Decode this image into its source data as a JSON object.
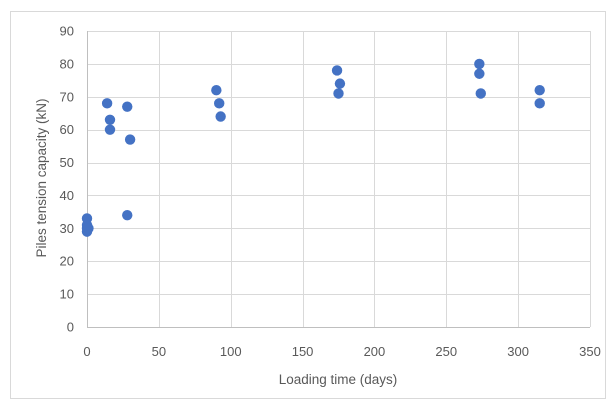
{
  "chart_data": {
    "type": "scatter",
    "title": "",
    "xlabel": "Loading time (days)",
    "ylabel": "Piles tension capacity (kN)",
    "xlim": [
      0,
      350
    ],
    "ylim": [
      0,
      90
    ],
    "x_ticks": [
      0,
      50,
      100,
      150,
      200,
      250,
      300,
      350
    ],
    "y_ticks": [
      0,
      10,
      20,
      30,
      40,
      50,
      60,
      70,
      80,
      90
    ],
    "x_tick_labels": [
      "0",
      "50",
      "100",
      "150",
      "200",
      "250",
      "300",
      "350"
    ],
    "y_tick_labels": [
      "0",
      "10",
      "20",
      "30",
      "40",
      "50",
      "60",
      "70",
      "80",
      "90"
    ],
    "grid": true,
    "marker_color": "#4472c4",
    "points": [
      {
        "x": 0,
        "y": 33
      },
      {
        "x": 0,
        "y": 31
      },
      {
        "x": 0,
        "y": 30
      },
      {
        "x": 0,
        "y": 29
      },
      {
        "x": 1,
        "y": 30
      },
      {
        "x": 14,
        "y": 68
      },
      {
        "x": 16,
        "y": 63
      },
      {
        "x": 16,
        "y": 60
      },
      {
        "x": 28,
        "y": 67
      },
      {
        "x": 30,
        "y": 57
      },
      {
        "x": 28,
        "y": 34
      },
      {
        "x": 90,
        "y": 72
      },
      {
        "x": 92,
        "y": 68
      },
      {
        "x": 93,
        "y": 64
      },
      {
        "x": 174,
        "y": 78
      },
      {
        "x": 176,
        "y": 74
      },
      {
        "x": 175,
        "y": 71
      },
      {
        "x": 273,
        "y": 80
      },
      {
        "x": 273,
        "y": 77
      },
      {
        "x": 274,
        "y": 71
      },
      {
        "x": 315,
        "y": 72
      },
      {
        "x": 315,
        "y": 68
      }
    ]
  }
}
